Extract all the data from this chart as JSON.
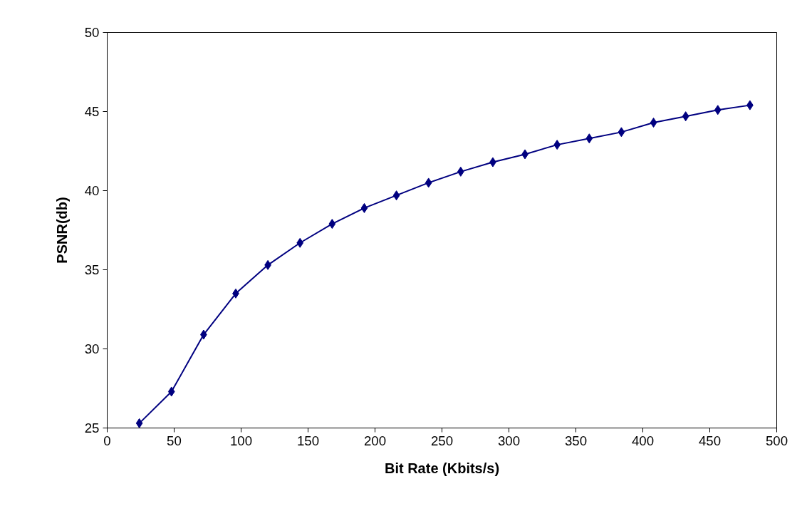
{
  "chart_data": {
    "type": "line",
    "xlabel": "Bit Rate (Kbits/s)",
    "ylabel": "PSNR(db)",
    "x": [
      24,
      48,
      72,
      96,
      120,
      144,
      168,
      192,
      216,
      240,
      264,
      288,
      312,
      336,
      360,
      384,
      408,
      432,
      456,
      480
    ],
    "series": [
      {
        "color": "#000080",
        "values": [
          25.3,
          27.3,
          30.9,
          33.5,
          35.3,
          36.7,
          37.9,
          38.9,
          39.7,
          40.5,
          41.2,
          41.8,
          42.3,
          42.9,
          43.3,
          43.7,
          44.3,
          44.7,
          45.1,
          45.4
        ]
      }
    ],
    "xlim": [
      0,
      500
    ],
    "ylim": [
      25,
      50
    ],
    "xticks": [
      0,
      50,
      100,
      150,
      200,
      250,
      300,
      350,
      400,
      450,
      500
    ],
    "yticks": [
      25,
      30,
      35,
      40,
      45,
      50
    ],
    "grid": false,
    "marker": "diamond",
    "line_style": "solid"
  }
}
